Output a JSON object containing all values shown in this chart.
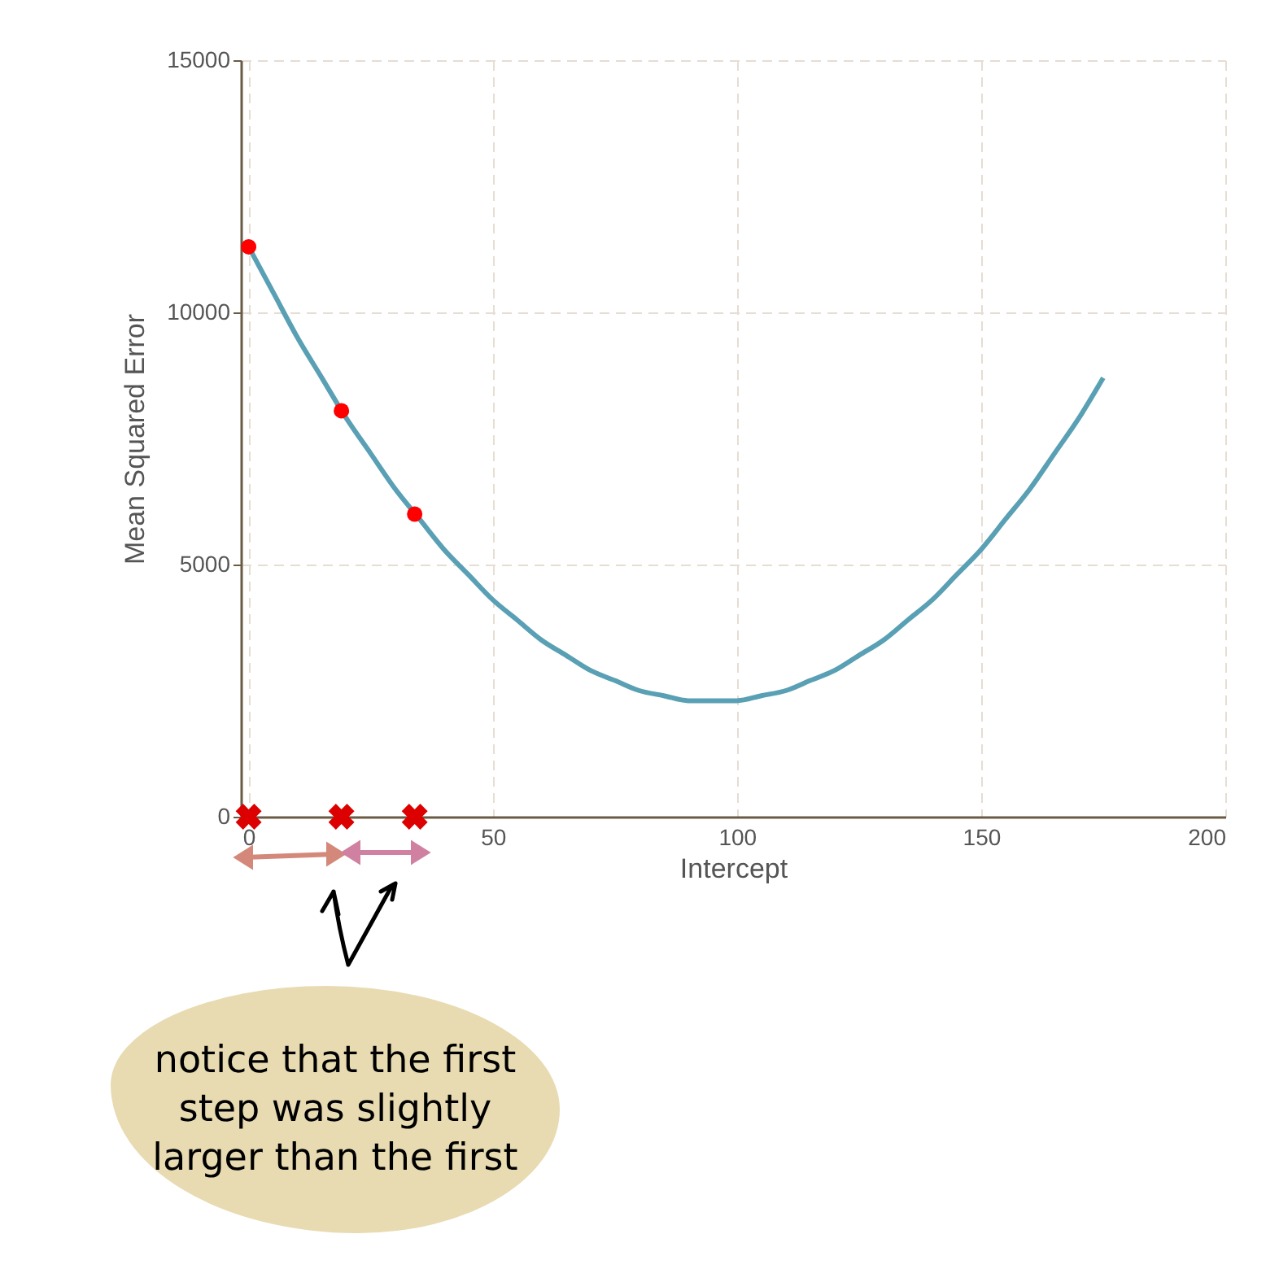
{
  "chart_data": {
    "type": "line",
    "xlabel": "Intercept",
    "ylabel": "Mean Squared Error",
    "xlim": [
      -1.6,
      200
    ],
    "xticks": [
      0,
      50,
      100,
      150,
      200
    ],
    "ylim": [
      0,
      15000
    ],
    "yticks": [
      0,
      5000,
      10000,
      15000
    ],
    "grid": true,
    "series": [
      {
        "color": "#5aa0b5",
        "marker": "none",
        "x": [
          0,
          5,
          10,
          15,
          20,
          25,
          30,
          35,
          40,
          45,
          50,
          55,
          60,
          65,
          70,
          75,
          80,
          85,
          90,
          95,
          100,
          105,
          110,
          115,
          120,
          125,
          130,
          135,
          140,
          145,
          150,
          155,
          160,
          165,
          170,
          175
        ],
        "values": [
          11300,
          10400,
          9500,
          8700,
          7900,
          7200,
          6500,
          5900,
          5300,
          4800,
          4300,
          3900,
          3500,
          3200,
          2900,
          2700,
          2500,
          2400,
          2300,
          2300,
          2300,
          2400,
          2500,
          2700,
          2900,
          3200,
          3500,
          3900,
          4300,
          4800,
          5300,
          5900,
          6500,
          7200,
          7900,
          8700
        ]
      },
      {
        "type": "scatter",
        "color": "#ff0000",
        "marker": "circle",
        "x": [
          0,
          19,
          34
        ],
        "values": [
          11300,
          8050,
          6000
        ]
      },
      {
        "type": "scatter",
        "color": "#dd0000",
        "marker": "cross",
        "x": [
          0,
          19,
          34
        ],
        "values": [
          0,
          0,
          0
        ]
      }
    ],
    "annotations": [
      "notice that the first step was slightly larger than the first"
    ]
  }
}
